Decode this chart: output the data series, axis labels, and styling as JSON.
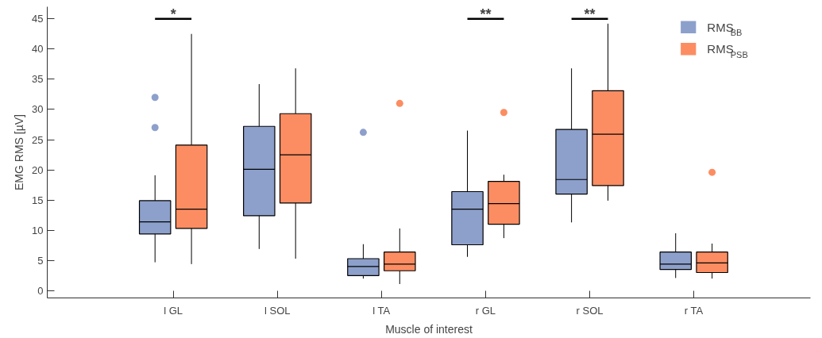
{
  "chart_data": {
    "type": "box",
    "xlabel": "Muscle of interest",
    "ylabel": "EMG RMS [µV]",
    "categories": [
      "l GL",
      "l SOL",
      "l TA",
      "r GL",
      "r SOL",
      "r TA"
    ],
    "ylim": [
      -1.2,
      47
    ],
    "yticks": [
      0,
      5,
      10,
      15,
      20,
      25,
      30,
      35,
      40,
      45
    ],
    "grid": false,
    "legend": "top right",
    "series": [
      {
        "name": "RMS$_{BB}$",
        "color": "#8da0cb",
        "boxes": [
          {
            "low": 4.7,
            "q1": 9.4,
            "median": 11.4,
            "q3": 14.9,
            "high": 19.1,
            "outliers": [
              27,
              32
            ]
          },
          {
            "low": 6.9,
            "q1": 12.4,
            "median": 20.1,
            "q3": 27.2,
            "high": 34.2
          },
          {
            "low": 2.0,
            "q1": 2.5,
            "median": 4.0,
            "q3": 5.3,
            "high": 7.7,
            "outliers": [
              26.2
            ]
          },
          {
            "low": 5.6,
            "q1": 7.6,
            "median": 13.5,
            "q3": 16.4,
            "high": 26.5
          },
          {
            "low": 11.3,
            "q1": 16.0,
            "median": 18.4,
            "q3": 26.7,
            "high": 36.8
          },
          {
            "low": 2.1,
            "q1": 3.5,
            "median": 4.4,
            "q3": 6.4,
            "high": 9.5
          }
        ]
      },
      {
        "name": "RMS$_{PSB}$",
        "color": "#fc8d62",
        "boxes": [
          {
            "low": 4.4,
            "q1": 10.3,
            "median": 13.5,
            "q3": 24.1,
            "high": 42.5
          },
          {
            "low": 5.3,
            "q1": 14.5,
            "median": 22.5,
            "q3": 29.3,
            "high": 36.8
          },
          {
            "low": 1.1,
            "q1": 3.3,
            "median": 4.4,
            "q3": 6.4,
            "high": 10.3,
            "outliers": [
              31
            ]
          },
          {
            "low": 8.7,
            "q1": 11.0,
            "median": 14.4,
            "q3": 18.1,
            "high": 19.2,
            "outliers": [
              29.5
            ]
          },
          {
            "low": 14.9,
            "q1": 17.4,
            "median": 25.9,
            "q3": 33.1,
            "high": 44.2
          },
          {
            "low": 2.0,
            "q1": 3.0,
            "median": 4.6,
            "q3": 6.4,
            "high": 7.8,
            "outliers": [
              19.6
            ]
          }
        ]
      }
    ],
    "annotations": [
      "*",
      "**",
      "**"
    ]
  }
}
